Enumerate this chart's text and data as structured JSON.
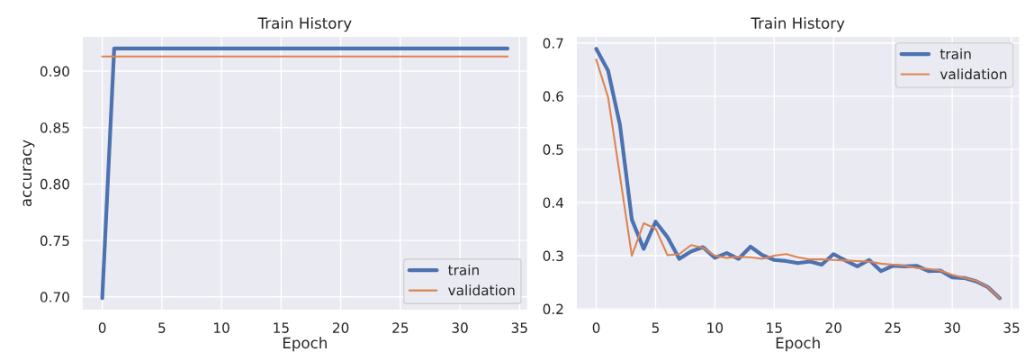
{
  "chart_data": [
    {
      "type": "line",
      "title": "Train History",
      "xlabel": "Epoch",
      "ylabel": "accuracy",
      "x": [
        0,
        1,
        2,
        3,
        4,
        5,
        6,
        7,
        8,
        9,
        10,
        11,
        12,
        13,
        14,
        15,
        16,
        17,
        18,
        19,
        20,
        21,
        22,
        23,
        24,
        25,
        26,
        27,
        28,
        29,
        30,
        31,
        32,
        33,
        34
      ],
      "series": [
        {
          "name": "train",
          "color": "#4c72b0",
          "values": [
            0.699,
            0.92,
            0.92,
            0.92,
            0.92,
            0.92,
            0.92,
            0.92,
            0.92,
            0.92,
            0.92,
            0.92,
            0.92,
            0.92,
            0.92,
            0.92,
            0.92,
            0.92,
            0.92,
            0.92,
            0.92,
            0.92,
            0.92,
            0.92,
            0.92,
            0.92,
            0.92,
            0.92,
            0.92,
            0.92,
            0.92,
            0.92,
            0.92,
            0.92,
            0.92
          ]
        },
        {
          "name": "validation",
          "color": "#dd8452",
          "values": [
            0.913,
            0.913,
            0.913,
            0.913,
            0.913,
            0.913,
            0.913,
            0.913,
            0.913,
            0.913,
            0.913,
            0.913,
            0.913,
            0.913,
            0.913,
            0.913,
            0.913,
            0.913,
            0.913,
            0.913,
            0.913,
            0.913,
            0.913,
            0.913,
            0.913,
            0.913,
            0.913,
            0.913,
            0.913,
            0.913,
            0.913,
            0.913,
            0.913,
            0.913,
            0.913
          ]
        }
      ],
      "xlim": [
        -1.7,
        35.7
      ],
      "xticks": [
        0,
        5,
        10,
        15,
        20,
        25,
        30,
        35
      ],
      "ylim": [
        0.688,
        0.931
      ],
      "yticks": [
        {
          "value": 0.7,
          "label": "0.70"
        },
        {
          "value": 0.75,
          "label": "0.75"
        },
        {
          "value": 0.8,
          "label": "0.80"
        },
        {
          "value": 0.85,
          "label": "0.85"
        },
        {
          "value": 0.9,
          "label": "0.90"
        }
      ],
      "grid": true,
      "legend": "lower right"
    },
    {
      "type": "line",
      "title": "Train History",
      "xlabel": "Epoch",
      "x": [
        0,
        1,
        2,
        3,
        4,
        5,
        6,
        7,
        8,
        9,
        10,
        11,
        12,
        13,
        14,
        15,
        16,
        17,
        18,
        19,
        20,
        21,
        22,
        23,
        24,
        25,
        26,
        27,
        28,
        29,
        30,
        31,
        32,
        33,
        34
      ],
      "series": [
        {
          "name": "train",
          "color": "#4c72b0",
          "values": [
            0.689,
            0.648,
            0.546,
            0.368,
            0.313,
            0.364,
            0.335,
            0.294,
            0.308,
            0.316,
            0.296,
            0.305,
            0.294,
            0.317,
            0.301,
            0.292,
            0.29,
            0.286,
            0.289,
            0.283,
            0.303,
            0.291,
            0.28,
            0.292,
            0.271,
            0.281,
            0.28,
            0.281,
            0.271,
            0.272,
            0.259,
            0.258,
            0.252,
            0.241,
            0.22
          ]
        },
        {
          "name": "validation",
          "color": "#dd8452",
          "values": [
            0.669,
            0.598,
            0.45,
            0.3,
            0.361,
            0.351,
            0.301,
            0.303,
            0.32,
            0.315,
            0.3,
            0.296,
            0.298,
            0.297,
            0.294,
            0.3,
            0.303,
            0.297,
            0.293,
            0.293,
            0.292,
            0.291,
            0.29,
            0.289,
            0.285,
            0.283,
            0.281,
            0.277,
            0.275,
            0.272,
            0.264,
            0.258,
            0.253,
            0.241,
            0.22
          ]
        }
      ],
      "xlim": [
        -1.7,
        35.7
      ],
      "xticks": [
        0,
        5,
        10,
        15,
        20,
        25,
        30,
        35
      ],
      "ylim": [
        0.197,
        0.713
      ],
      "yticks": [
        0.2,
        0.3,
        0.4,
        0.5,
        0.6,
        0.7
      ],
      "grid": true,
      "legend": "upper right"
    }
  ]
}
